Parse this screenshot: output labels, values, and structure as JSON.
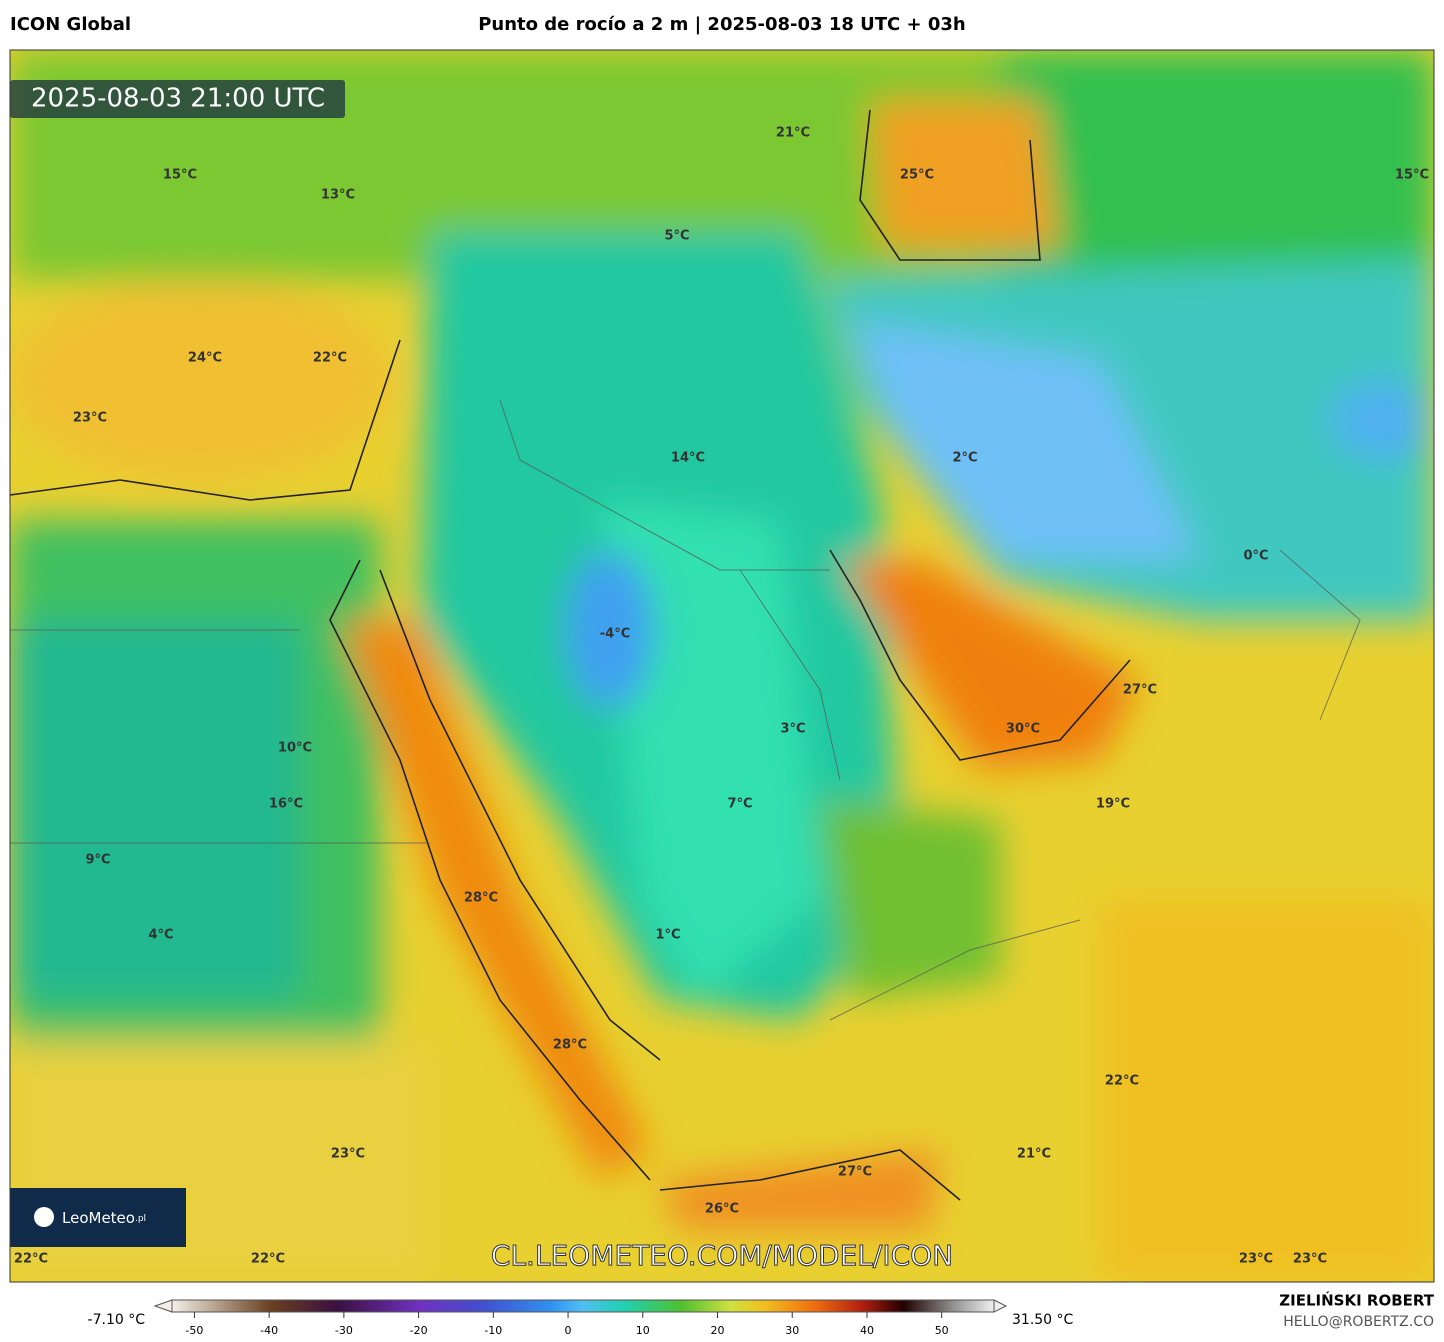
{
  "header": {
    "model": "ICON Global",
    "title": "Punto de rocío a 2 m | 2025-08-03 18 UTC + 03h"
  },
  "map": {
    "timestamp": "2025-08-03 21:00 UTC",
    "logo": "LeoMeteo",
    "logo_suffix": ".pl",
    "watermark": "CL.LEOMETEO.COM/MODEL/ICON",
    "labels": [
      "15°C",
      "13°C",
      "24°C",
      "22°C",
      "23°C",
      "21°C",
      "5°C",
      "25°C",
      "15°C",
      "14°C",
      "2°C",
      "0°C",
      "-4°C",
      "3°C",
      "27°C",
      "30°C",
      "10°C",
      "16°C",
      "7°C",
      "19°C",
      "9°C",
      "28°C",
      "4°C",
      "1°C",
      "28°C",
      "22°C",
      "23°C",
      "21°C",
      "27°C",
      "26°C",
      "22°C",
      "22°C",
      "23°C",
      "23°C"
    ]
  },
  "colorbar": {
    "min_label": "-7.10 °C",
    "max_label": "31.50 °C",
    "lim": [
      -53,
      57
    ],
    "ticks": [
      -50,
      -40,
      -30,
      -20,
      -10,
      0,
      10,
      20,
      30,
      40,
      50
    ]
  },
  "footer": {
    "author": "ZIELIŃSKI ROBERT",
    "email": "HELLO@ROBERTZ.CO"
  }
}
